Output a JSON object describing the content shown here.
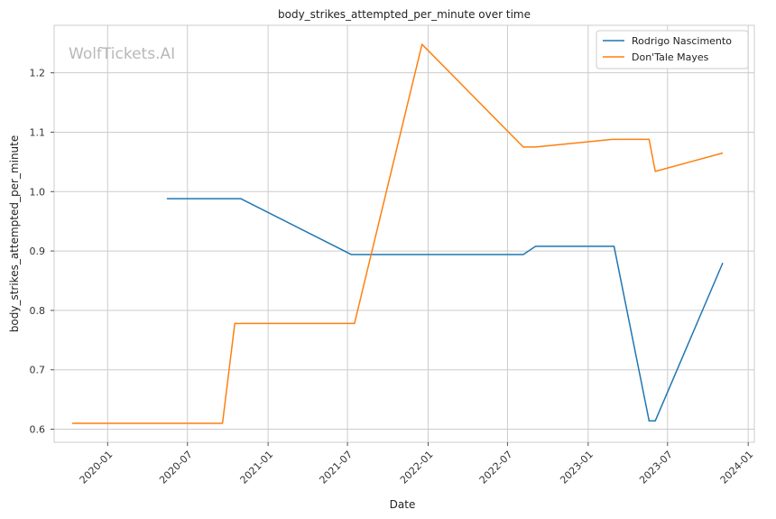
{
  "chart_data": {
    "type": "line",
    "title": "body_strikes_attempted_per_minute over time",
    "xlabel": "Date",
    "ylabel": "body_strikes_attempted_per_minute",
    "watermark": "WolfTickets.AI",
    "x_ticks": [
      "2020-01",
      "2020-07",
      "2021-01",
      "2021-07",
      "2022-01",
      "2022-07",
      "2023-01",
      "2023-07",
      "2024-01"
    ],
    "y_ticks": [
      "0.6",
      "0.7",
      "0.8",
      "0.9",
      "1.0",
      "1.1",
      "1.2"
    ],
    "xlim": [
      "2019-09-01",
      "2024-01-15"
    ],
    "ylim": [
      0.578,
      1.28
    ],
    "grid": true,
    "legend_position": "top-right",
    "series": [
      {
        "name": "Rodrigo Nascimento",
        "color": "#1f77b4",
        "points": [
          {
            "x": "2020-05-15",
            "y": 0.988
          },
          {
            "x": "2020-10-31",
            "y": 0.988
          },
          {
            "x": "2021-07-10",
            "y": 0.894
          },
          {
            "x": "2022-08-06",
            "y": 0.894
          },
          {
            "x": "2022-09-03",
            "y": 0.908
          },
          {
            "x": "2023-03-01",
            "y": 0.908
          },
          {
            "x": "2023-05-20",
            "y": 0.614
          },
          {
            "x": "2023-06-03",
            "y": 0.614
          },
          {
            "x": "2023-11-04",
            "y": 0.88
          }
        ]
      },
      {
        "name": "Don'Tale Mayes",
        "color": "#ff7f0e",
        "points": [
          {
            "x": "2019-10-12",
            "y": 0.61
          },
          {
            "x": "2020-09-19",
            "y": 0.61
          },
          {
            "x": "2020-10-17",
            "y": 0.778
          },
          {
            "x": "2021-07-17",
            "y": 0.778
          },
          {
            "x": "2021-12-18",
            "y": 1.248
          },
          {
            "x": "2022-08-06",
            "y": 1.075
          },
          {
            "x": "2022-09-03",
            "y": 1.075
          },
          {
            "x": "2023-02-25",
            "y": 1.088
          },
          {
            "x": "2023-05-20",
            "y": 1.088
          },
          {
            "x": "2023-06-03",
            "y": 1.034
          },
          {
            "x": "2023-11-04",
            "y": 1.065
          }
        ]
      }
    ]
  }
}
